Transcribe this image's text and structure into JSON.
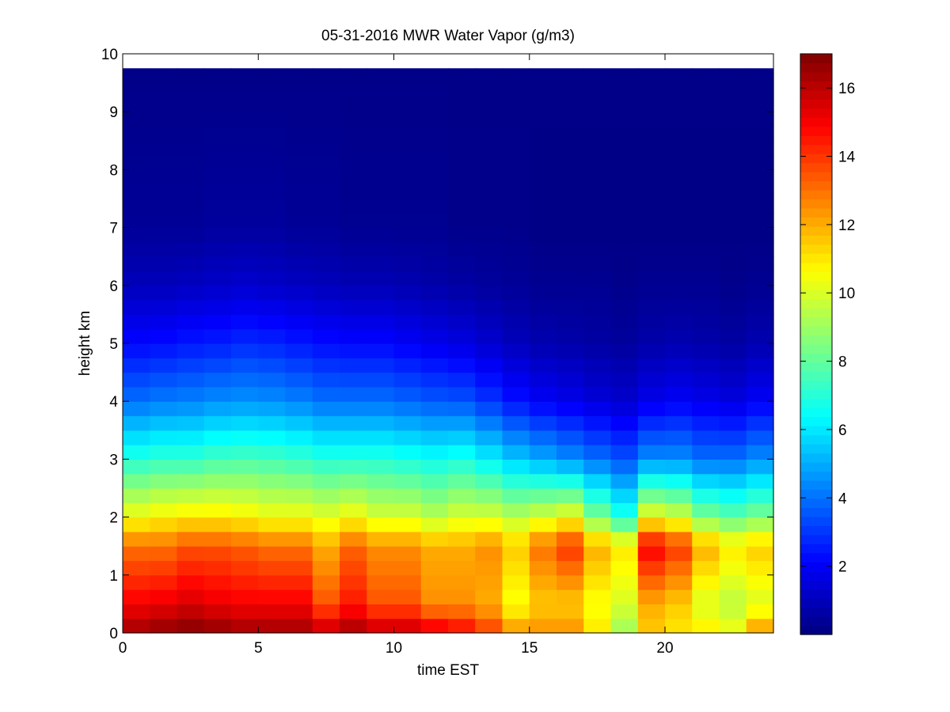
{
  "chart_data": {
    "type": "heatmap",
    "title": "05-31-2016 MWR Water Vapor (g/m3)",
    "xlabel": "time EST",
    "ylabel": "height km",
    "xlim": [
      0,
      24
    ],
    "ylim": [
      0,
      10
    ],
    "xticks": [
      0,
      5,
      10,
      15,
      20
    ],
    "yticks": [
      0,
      1,
      2,
      3,
      4,
      5,
      6,
      7,
      8,
      9,
      10
    ],
    "colorbar": {
      "colormap": "jet",
      "clim": [
        0,
        17
      ],
      "ticks": [
        2,
        4,
        6,
        8,
        10,
        12,
        14,
        16
      ]
    },
    "units": "g/m3",
    "time_hours": [
      0,
      1,
      2,
      3,
      4,
      5,
      6,
      7,
      8,
      9,
      10,
      11,
      12,
      13,
      14,
      15,
      16,
      17,
      18,
      19,
      20,
      21,
      22,
      23
    ],
    "data_height_top_km": 9.75,
    "profiles": [
      {
        "t": 0,
        "surface": 16.5,
        "b05": 15.0,
        "b15": 13.0,
        "s2": 10.5,
        "s3": 7.0,
        "s4": 4.0,
        "s5": 2.2,
        "s6": 1.0,
        "s7": 0.4
      },
      {
        "t": 1,
        "surface": 16.8,
        "b05": 15.2,
        "b15": 13.0,
        "s2": 10.8,
        "s3": 7.2,
        "s4": 4.2,
        "s5": 2.3,
        "s6": 1.0,
        "s7": 0.4
      },
      {
        "t": 2,
        "surface": 17.0,
        "b05": 15.5,
        "b15": 13.5,
        "s2": 11.0,
        "s3": 7.2,
        "s4": 4.3,
        "s5": 2.5,
        "s6": 1.1,
        "s7": 0.4
      },
      {
        "t": 3,
        "surface": 16.8,
        "b05": 15.2,
        "b15": 13.5,
        "s2": 11.0,
        "s3": 7.5,
        "s4": 4.5,
        "s5": 2.6,
        "s6": 1.2,
        "s7": 0.5
      },
      {
        "t": 4,
        "surface": 16.5,
        "b05": 15.0,
        "b15": 13.3,
        "s2": 10.8,
        "s3": 7.6,
        "s4": 4.6,
        "s5": 2.8,
        "s6": 1.3,
        "s7": 0.5
      },
      {
        "t": 5,
        "surface": 16.5,
        "b05": 15.0,
        "b15": 13.0,
        "s2": 10.5,
        "s3": 7.5,
        "s4": 4.5,
        "s5": 2.7,
        "s6": 1.2,
        "s7": 0.5
      },
      {
        "t": 6,
        "surface": 16.5,
        "b05": 15.0,
        "b15": 13.0,
        "s2": 10.5,
        "s3": 7.3,
        "s4": 4.3,
        "s5": 2.5,
        "s6": 1.1,
        "s7": 0.4
      },
      {
        "t": 7,
        "surface": 16.0,
        "b05": 13.5,
        "b15": 12.0,
        "s2": 10.2,
        "s3": 7.0,
        "s4": 4.0,
        "s5": 2.3,
        "s6": 1.0,
        "s7": 0.4
      },
      {
        "t": 8,
        "surface": 16.5,
        "b05": 14.5,
        "b15": 13.2,
        "s2": 10.6,
        "s3": 7.0,
        "s4": 4.0,
        "s5": 2.2,
        "s6": 0.9,
        "s7": 0.3
      },
      {
        "t": 9,
        "surface": 16.0,
        "b05": 13.5,
        "b15": 12.5,
        "s2": 10.0,
        "s3": 7.0,
        "s4": 4.0,
        "s5": 2.2,
        "s6": 0.9,
        "s7": 0.3
      },
      {
        "t": 10,
        "surface": 16.0,
        "b05": 13.5,
        "b15": 12.5,
        "s2": 10.0,
        "s3": 6.8,
        "s4": 3.8,
        "s5": 2.0,
        "s6": 0.8,
        "s7": 0.3
      },
      {
        "t": 11,
        "surface": 15.5,
        "b05": 12.5,
        "b15": 12.0,
        "s2": 9.5,
        "s3": 6.6,
        "s4": 3.6,
        "s5": 1.8,
        "s6": 0.7,
        "s7": 0.3
      },
      {
        "t": 12,
        "surface": 15.0,
        "b05": 12.5,
        "b15": 12.0,
        "s2": 10.0,
        "s3": 6.8,
        "s4": 3.5,
        "s5": 1.6,
        "s6": 0.6,
        "s7": 0.2
      },
      {
        "t": 13,
        "surface": 14.0,
        "b05": 12.0,
        "b15": 12.5,
        "s2": 10.0,
        "s3": 6.2,
        "s4": 3.0,
        "s5": 1.3,
        "s6": 0.5,
        "s7": 0.2
      },
      {
        "t": 14,
        "surface": 12.5,
        "b05": 10.5,
        "b15": 11.5,
        "s2": 9.5,
        "s3": 5.5,
        "s4": 2.4,
        "s5": 1.0,
        "s6": 0.4,
        "s7": 0.2
      },
      {
        "t": 15,
        "surface": 12.5,
        "b05": 11.5,
        "b15": 13.0,
        "s2": 10.0,
        "s3": 5.0,
        "s4": 2.0,
        "s5": 0.8,
        "s6": 0.3,
        "s7": 0.1
      },
      {
        "t": 16,
        "surface": 12.5,
        "b05": 11.5,
        "b15": 14.0,
        "s2": 10.5,
        "s3": 4.5,
        "s4": 1.8,
        "s5": 0.7,
        "s6": 0.3,
        "s7": 0.1
      },
      {
        "t": 17,
        "surface": 11.0,
        "b05": 10.5,
        "b15": 12.0,
        "s2": 8.5,
        "s3": 4.0,
        "s4": 1.5,
        "s5": 0.6,
        "s6": 0.3,
        "s7": 0.1
      },
      {
        "t": 18,
        "surface": 9.0,
        "b05": 10.0,
        "b15": 11.0,
        "s2": 7.0,
        "s3": 3.5,
        "s4": 1.3,
        "s5": 0.5,
        "s6": 0.2,
        "s7": 0.1
      },
      {
        "t": 19,
        "surface": 11.5,
        "b05": 12.0,
        "b15": 15.0,
        "s2": 10.5,
        "s3": 4.5,
        "s4": 1.8,
        "s5": 0.7,
        "s6": 0.3,
        "s7": 0.1
      },
      {
        "t": 20,
        "surface": 11.0,
        "b05": 11.5,
        "b15": 14.0,
        "s2": 10.0,
        "s3": 4.5,
        "s4": 2.0,
        "s5": 0.8,
        "s6": 0.3,
        "s7": 0.1
      },
      {
        "t": 21,
        "surface": 11.0,
        "b05": 10.0,
        "b15": 12.0,
        "s2": 8.5,
        "s3": 4.0,
        "s4": 1.8,
        "s5": 0.7,
        "s6": 0.3,
        "s7": 0.1
      },
      {
        "t": 22,
        "surface": 10.5,
        "b05": 9.5,
        "b15": 11.0,
        "s2": 8.0,
        "s3": 4.0,
        "s4": 1.6,
        "s5": 0.6,
        "s6": 0.2,
        "s7": 0.1
      },
      {
        "t": 23,
        "surface": 12.5,
        "b05": 10.0,
        "b15": 11.5,
        "s2": 8.5,
        "s3": 4.5,
        "s4": 2.0,
        "s5": 0.8,
        "s6": 0.3,
        "s7": 0.1
      }
    ]
  }
}
